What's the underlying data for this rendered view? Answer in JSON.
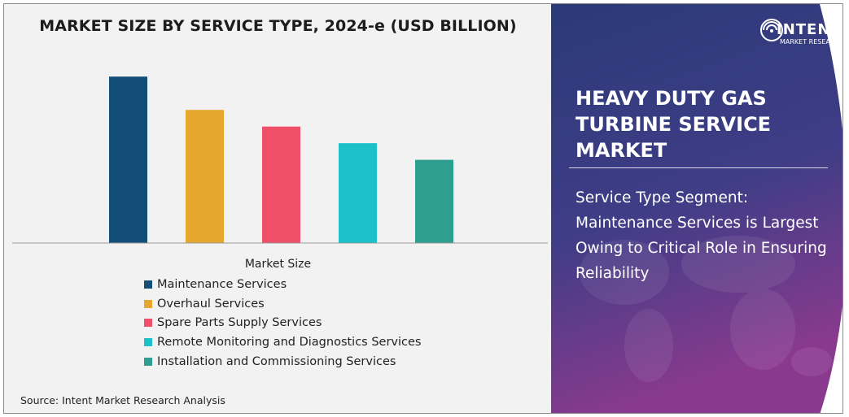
{
  "chart_data": {
    "type": "bar",
    "title": "MARKET SIZE BY SERVICE TYPE, 2024-e (USD BILLION)",
    "xlabel": "Market Size",
    "ylabel": "",
    "categories": [
      "Maintenance Services",
      "Overhaul Services",
      "Spare Parts Supply Services",
      "Remote Monitoring and Diagnostics Services",
      "Installation and Commissioning Services"
    ],
    "values": [
      10.0,
      8.0,
      7.0,
      6.0,
      5.0
    ],
    "colors": [
      "#124e78",
      "#e5a82d",
      "#f0506a",
      "#1cc0c8",
      "#2e9e90"
    ],
    "ylim": [
      0,
      10.5
    ],
    "grid": false,
    "legend_position": "bottom"
  },
  "source_text": "Source: Intent Market Research Analysis",
  "report": {
    "title": "HEAVY DUTY GAS TURBINE SERVICE MARKET",
    "segment_text": "Service Type Segment: Maintenance Services is Largest Owing to Critical Role in Ensuring Reliability"
  },
  "brand": {
    "name": "INTENT",
    "subtitle": "MARKET RESEARCH",
    "logo_icon": "wifi-signal-icon"
  },
  "colors": {
    "panel_bg": "#f2f2f2",
    "gradient_top": "#2b3a78",
    "gradient_bottom": "#8a3a8e"
  }
}
